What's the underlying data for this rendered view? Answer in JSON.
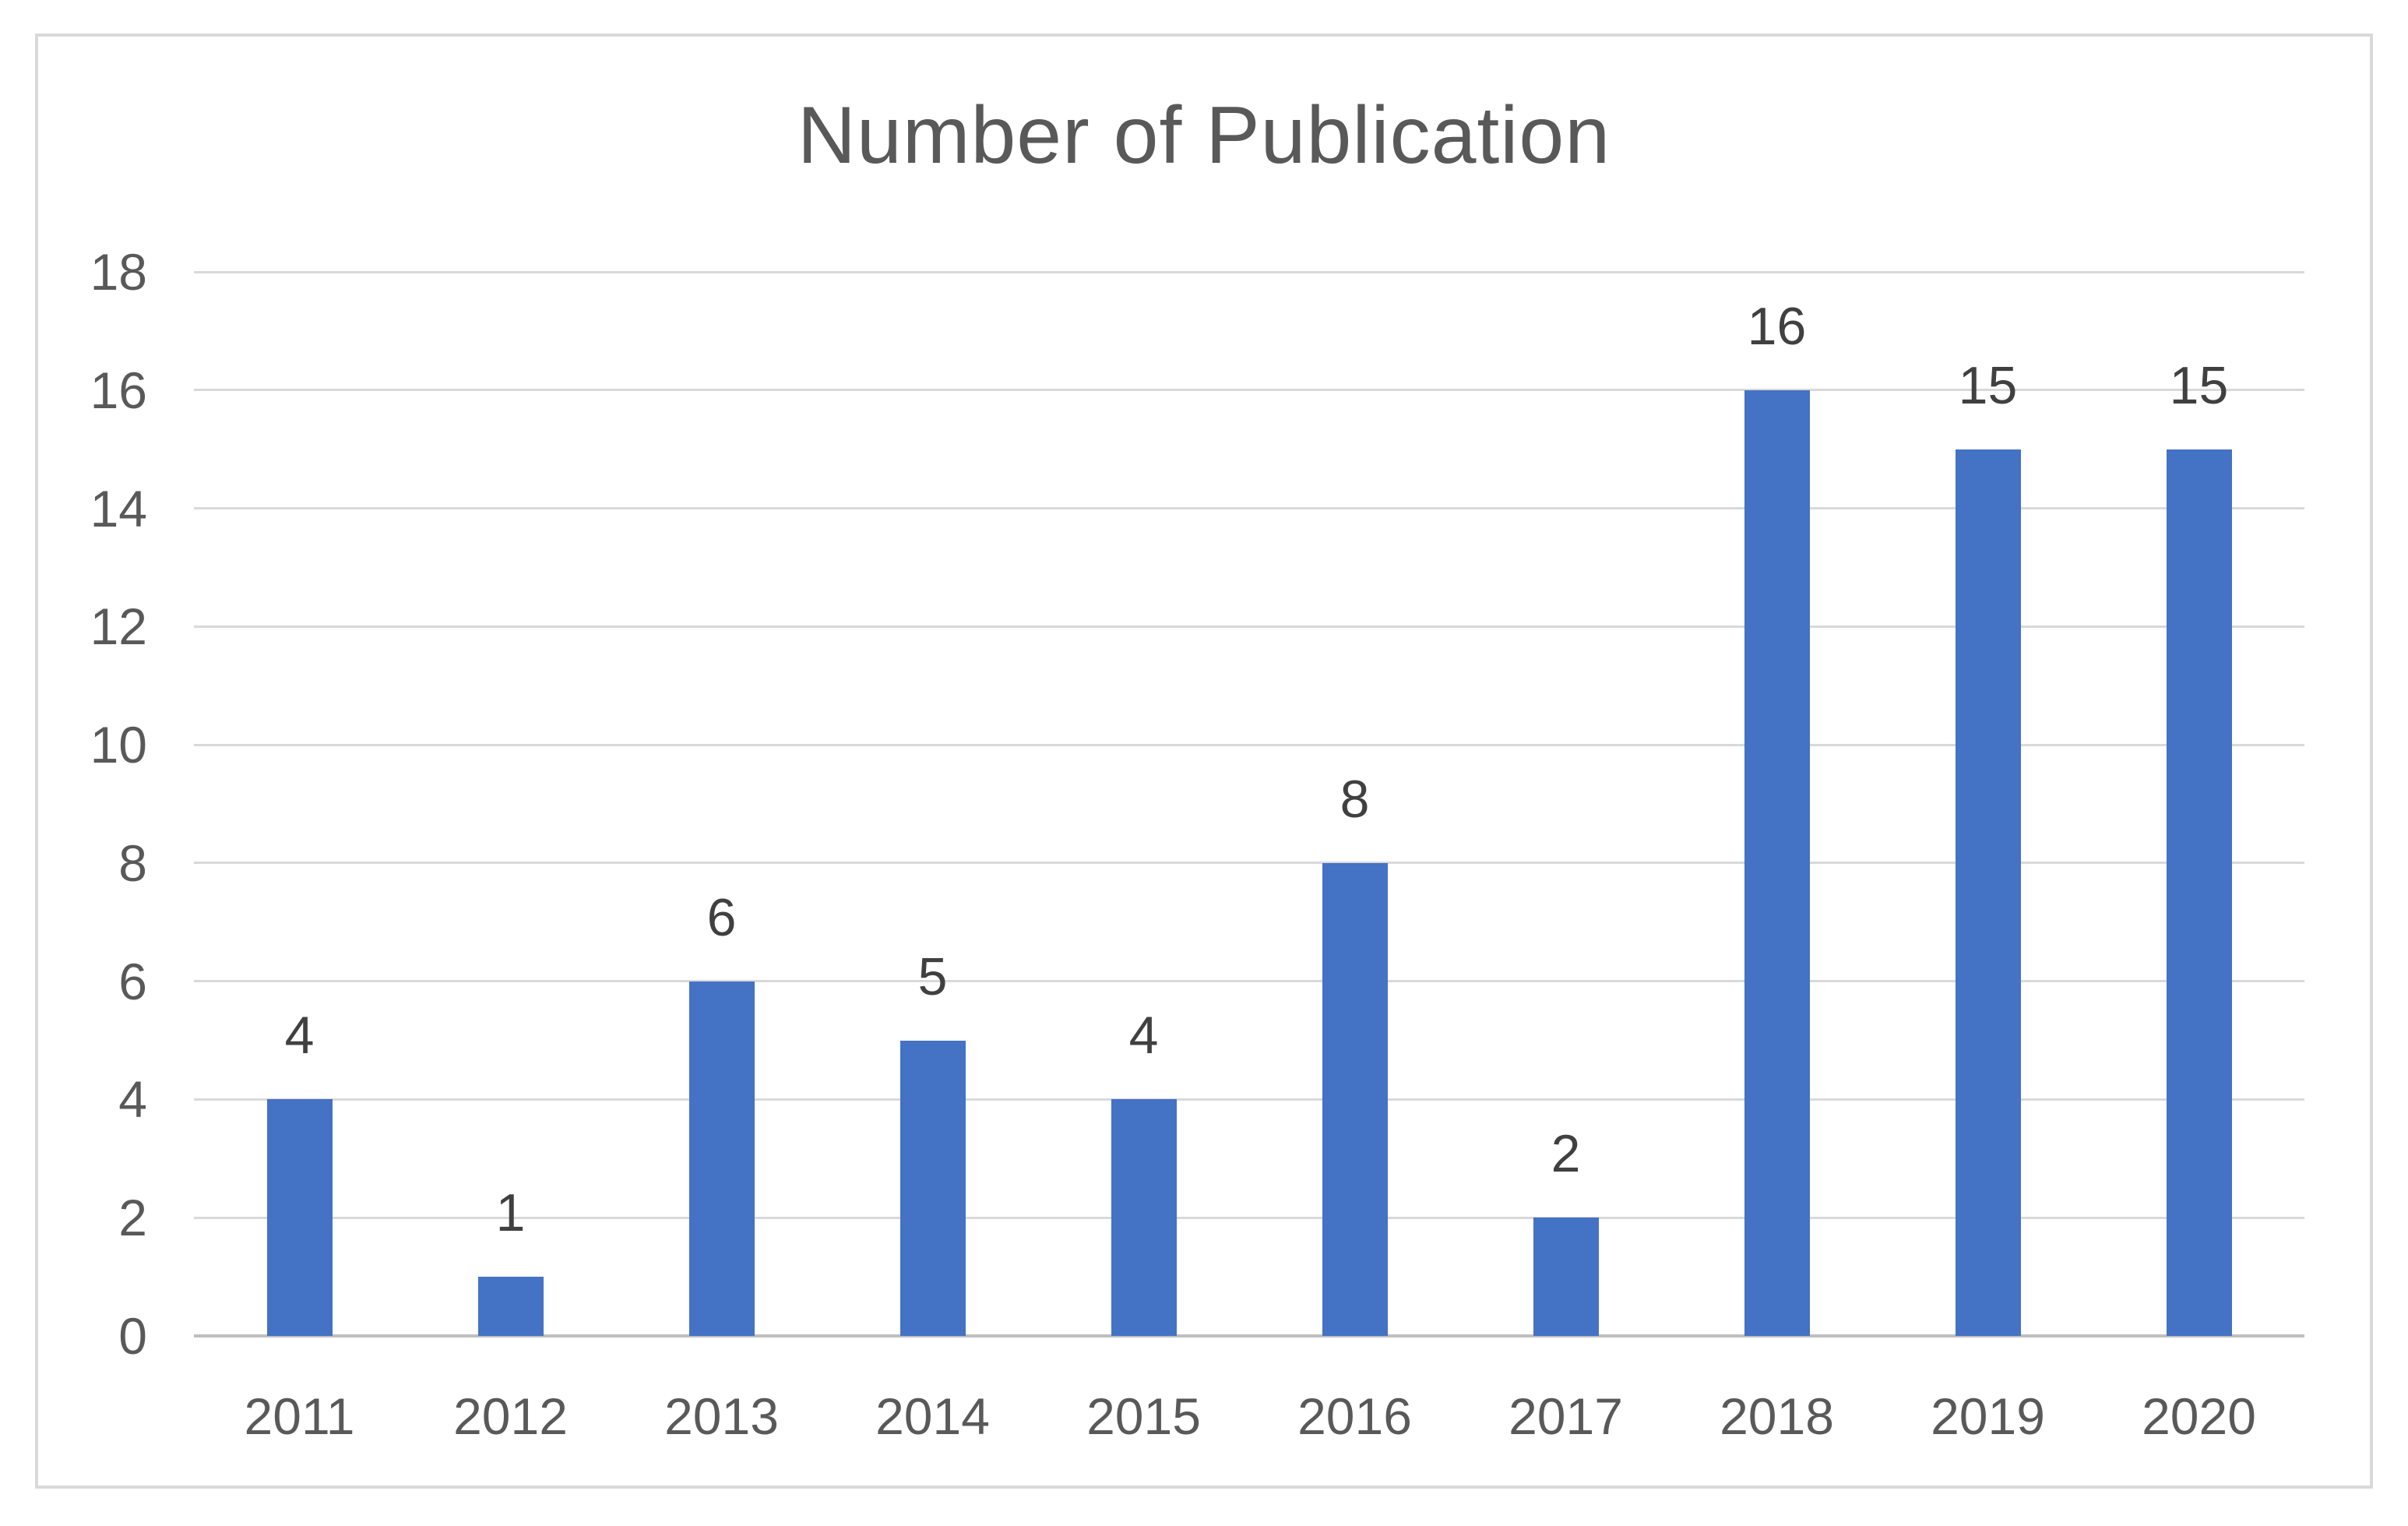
{
  "chart_data": {
    "type": "bar",
    "title": "Number of Publication",
    "categories": [
      "2011",
      "2012",
      "2013",
      "2014",
      "2015",
      "2016",
      "2017",
      "2018",
      "2019",
      "2020"
    ],
    "values": [
      4,
      1,
      6,
      5,
      4,
      8,
      2,
      16,
      15,
      15
    ],
    "xlabel": "",
    "ylabel": "",
    "ylim": [
      0,
      18
    ],
    "ytick_step": 2,
    "yticks": [
      0,
      2,
      4,
      6,
      8,
      10,
      12,
      14,
      16,
      18
    ],
    "grid": "horizontal",
    "legend": "none",
    "data_labels": "outside-end",
    "colors": {
      "bar": "#4472c4",
      "gridline": "#d9d9d9",
      "axis_line": "#bfbfbf",
      "tick_label": "#595959",
      "data_label": "#404040",
      "title": "#595959",
      "frame_border": "#d9d9d9",
      "background": "#ffffff"
    }
  }
}
